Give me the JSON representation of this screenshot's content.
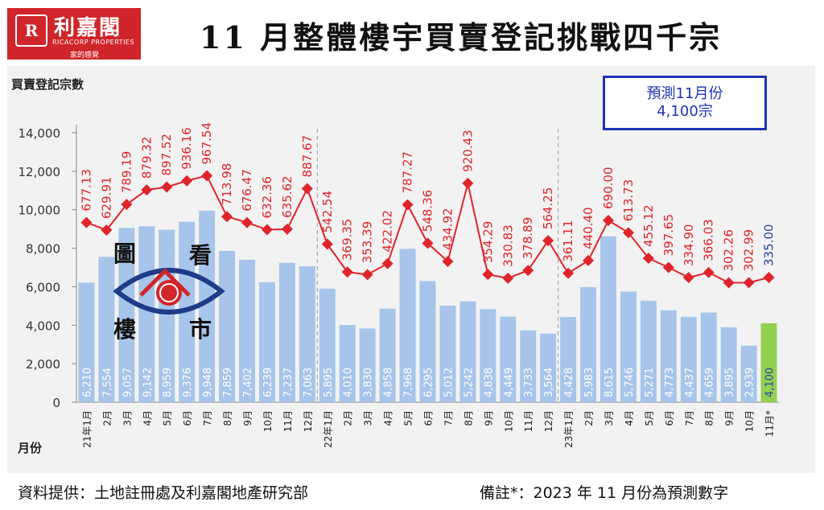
{
  "header": {
    "title": "11 月整體樓宇買賣登記挑戰四千宗",
    "logo": {
      "mark": "R",
      "name": "利嘉閣",
      "english": "RICACORP PROPERTIES",
      "tagline": "家的感覺"
    }
  },
  "forecast_box": {
    "line1": "預測11月份",
    "line2": "4,100宗"
  },
  "watermark": {
    "chars": [
      "圖",
      "看",
      "樓",
      "市"
    ]
  },
  "footer": {
    "source": "資料提供：土地註冊處及利嘉閣地產研究部",
    "note": "備註*：2023 年 11 月份為預測數字"
  },
  "colors": {
    "bar": "#a7c5ea",
    "forecast_bar": "#92d050",
    "line": "#e0242b",
    "bar_label": "#ffffff",
    "forecast_label": "#2a3fa8"
  },
  "chart_data": {
    "type": "bar",
    "ylabel": "買賣登記宗數",
    "xlabel": "月份",
    "ylim": [
      0,
      14000
    ],
    "yticks": [
      0,
      2000,
      4000,
      6000,
      8000,
      10000,
      12000,
      14000
    ],
    "ytick_labels": [
      "0",
      "2,000",
      "4,000",
      "6,000",
      "8,000",
      "10,000",
      "12,000",
      "14,000"
    ],
    "categories": [
      "21年1月",
      "2月",
      "3月",
      "4月",
      "5月",
      "6月",
      "7月",
      "8月",
      "9月",
      "10月",
      "11月",
      "12月",
      "22年1月",
      "2月",
      "3月",
      "4月",
      "5月",
      "6月",
      "7月",
      "8月",
      "9月",
      "10月",
      "11月",
      "12月",
      "23年1月",
      "2月",
      "3月",
      "4月",
      "5月",
      "6月",
      "7月",
      "8月",
      "9月",
      "10月",
      "11月*"
    ],
    "series": [
      {
        "kind": "bar",
        "values": [
          6210,
          7554,
          9057,
          9142,
          8959,
          9376,
          9948,
          7859,
          7402,
          6239,
          7237,
          7063,
          5895,
          4010,
          3830,
          4858,
          7968,
          6295,
          5012,
          5242,
          4838,
          4449,
          3733,
          3564,
          4428,
          5983,
          8615,
          5746,
          5271,
          4773,
          4437,
          4659,
          3895,
          2939,
          4100
        ],
        "labels": [
          "6,210",
          "7,554",
          "9,057",
          "9,142",
          "8,959",
          "9,376",
          "9,948",
          "7,859",
          "7,402",
          "6,239",
          "7,237",
          "7,063",
          "5,895",
          "4,010",
          "3,830",
          "4,858",
          "7,968",
          "6,295",
          "5,012",
          "5,242",
          "4,838",
          "4,449",
          "3,733",
          "3,564",
          "4,428",
          "5,983",
          "8,615",
          "5,746",
          "5,271",
          "4,773",
          "4,437",
          "4,659",
          "3,895",
          "2,939",
          "4,100"
        ],
        "forecast_index": 34
      },
      {
        "kind": "line",
        "values": [
          677.13,
          629.91,
          789.19,
          879.32,
          897.52,
          936.16,
          967.54,
          713.98,
          676.47,
          632.36,
          635.62,
          887.67,
          542.54,
          369.35,
          353.39,
          422.02,
          787.27,
          548.36,
          434.92,
          920.43,
          354.29,
          330.83,
          378.89,
          564.25,
          361.11,
          440.4,
          690.0,
          613.73,
          455.12,
          397.65,
          334.9,
          366.03,
          302.26,
          302.99,
          335.0
        ],
        "labels": [
          "677.13",
          "629.91",
          "789.19",
          "879.32",
          "897.52",
          "936.16",
          "967.54",
          "713.98",
          "676.47",
          "632.36",
          "635.62",
          "887.67",
          "542.54",
          "369.35",
          "353.39",
          "422.02",
          "787.27",
          "548.36",
          "434.92",
          "920.43",
          "354.29",
          "330.83",
          "378.89",
          "564.25",
          "361.11",
          "440.40",
          "690.00",
          "613.73",
          "455.12",
          "397.65",
          "334.90",
          "366.03",
          "302.26",
          "302.99",
          "335.00"
        ]
      }
    ],
    "year_separators_after": [
      11,
      23
    ]
  }
}
